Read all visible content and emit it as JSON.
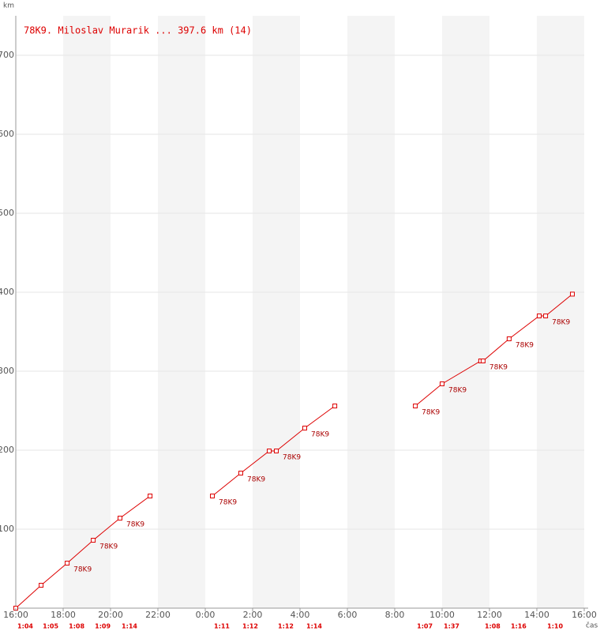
{
  "chart_data": {
    "type": "line",
    "title": "78K9. Miloslav Murarik ... 397.6 km (14)",
    "y_label": "km",
    "x_label": "čas",
    "xlim": [
      0,
      24
    ],
    "xticks": [
      {
        "value": 0,
        "label": "16:00"
      },
      {
        "value": 2,
        "label": "18:00"
      },
      {
        "value": 4,
        "label": "20:00"
      },
      {
        "value": 6,
        "label": "22:00"
      },
      {
        "value": 8,
        "label": "0:00"
      },
      {
        "value": 10,
        "label": "2:00"
      },
      {
        "value": 12,
        "label": "4:00"
      },
      {
        "value": 14,
        "label": "6:00"
      },
      {
        "value": 16,
        "label": "8:00"
      },
      {
        "value": 18,
        "label": "10:00"
      },
      {
        "value": 20,
        "label": "12:00"
      },
      {
        "value": 22,
        "label": "14:00"
      },
      {
        "value": 24,
        "label": "16:00"
      }
    ],
    "ylim": [
      0,
      750
    ],
    "yticks": [
      100,
      200,
      300,
      400,
      500,
      600,
      700
    ],
    "grid": true,
    "series": [
      {
        "color": "#dd0000",
        "x": [
          0,
          1.07,
          2.17,
          3.27,
          4.4,
          5.67,
          null,
          8.3,
          9.5,
          10.7,
          11.0,
          12.2,
          13.47,
          null,
          16.87,
          18.0,
          19.63,
          19.73,
          20.83,
          22.1,
          22.37,
          23.5
        ],
        "values": [
          0,
          29,
          57,
          86,
          114,
          142,
          null,
          142,
          171,
          199,
          199,
          228,
          256,
          null,
          256,
          284,
          313,
          313,
          341,
          370,
          370,
          397.6
        ],
        "point_labels": [
          null,
          null,
          "78K9",
          "78K9",
          "78K9",
          null,
          null,
          "78K9",
          "78K9",
          null,
          "78K9",
          "78K9",
          null,
          null,
          "78K9",
          "78K9",
          null,
          "78K9",
          "78K9",
          null,
          "78K9",
          null
        ],
        "lap_labels": [
          "1:04",
          "1:05",
          "1:08",
          "1:09",
          "1:14",
          null,
          null,
          "1:11",
          "1:12",
          null,
          "1:12",
          "1:14",
          null,
          null,
          "1:07",
          "1:37",
          null,
          "1:08",
          "1:16",
          null,
          "1:10",
          null
        ]
      }
    ]
  }
}
